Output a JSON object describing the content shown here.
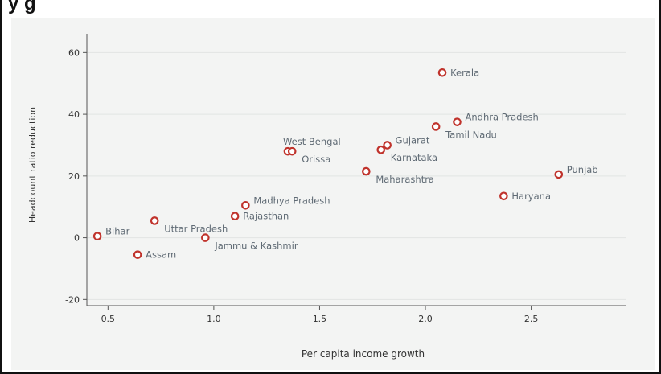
{
  "page": {
    "title_partial": "y                                          g"
  },
  "chart_data": {
    "type": "scatter",
    "title": "",
    "xlabel": "Per capita income growth",
    "ylabel": "Headcount ratio reduction",
    "xlim": [
      0.4,
      2.95
    ],
    "ylim": [
      -22,
      64
    ],
    "xticks": [
      0.5,
      1.0,
      1.5,
      2.0,
      2.5
    ],
    "xtick_labels": [
      "0.5",
      "1.0",
      "1.5",
      "2.0",
      "2.5"
    ],
    "yticks": [
      -20,
      0,
      20,
      40,
      60
    ],
    "ytick_labels": [
      "-20",
      "0",
      "20",
      "40",
      "60"
    ],
    "grid": true,
    "marker_color": "#c0332c",
    "label_color": "#5f6a74",
    "points": [
      {
        "label": "Bihar",
        "x": 0.45,
        "y": 0.5,
        "pos": "right-up"
      },
      {
        "label": "Assam",
        "x": 0.64,
        "y": -5.5,
        "pos": "right"
      },
      {
        "label": "Uttar Pradesh",
        "x": 0.72,
        "y": 5.5,
        "pos": "right-down"
      },
      {
        "label": "Jammu & Kashmir",
        "x": 0.96,
        "y": 0.0,
        "pos": "right-down"
      },
      {
        "label": "Rajasthan",
        "x": 1.1,
        "y": 7.0,
        "pos": "right"
      },
      {
        "label": "Madhya Pradesh",
        "x": 1.15,
        "y": 10.5,
        "pos": "right-up"
      },
      {
        "label": "West Bengal",
        "x": 1.35,
        "y": 28.0,
        "pos": "up"
      },
      {
        "label": "Orissa",
        "x": 1.37,
        "y": 28.0,
        "pos": "right-down"
      },
      {
        "label": "Maharashtra",
        "x": 1.72,
        "y": 21.5,
        "pos": "right-down"
      },
      {
        "label": "Karnataka",
        "x": 1.79,
        "y": 28.5,
        "pos": "right-down"
      },
      {
        "label": "Gujarat",
        "x": 1.82,
        "y": 30.0,
        "pos": "right-up"
      },
      {
        "label": "Kerala",
        "x": 2.08,
        "y": 53.5,
        "pos": "right"
      },
      {
        "label": "Tamil Nadu",
        "x": 2.05,
        "y": 36.0,
        "pos": "right-down"
      },
      {
        "label": "Andhra Pradesh",
        "x": 2.15,
        "y": 37.5,
        "pos": "right-up"
      },
      {
        "label": "Haryana",
        "x": 2.37,
        "y": 13.5,
        "pos": "right"
      },
      {
        "label": "Punjab",
        "x": 2.63,
        "y": 20.5,
        "pos": "right-up"
      }
    ]
  }
}
